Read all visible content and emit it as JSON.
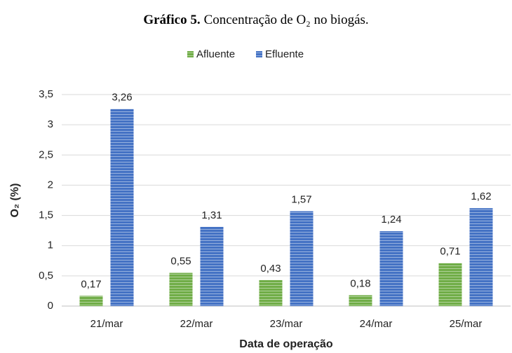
{
  "chart_data": {
    "type": "bar",
    "title_label": "Gráfico 5.",
    "title": "Concentração de O₂ no biogás.",
    "x_label": "Data de operação",
    "y_label": "O₂ (%)",
    "categories": [
      "21/mar",
      "22/mar",
      "23/mar",
      "24/mar",
      "25/mar"
    ],
    "series": [
      {
        "name": "Afluente",
        "color": "#70ad47",
        "values": [
          0.17,
          0.55,
          0.43,
          0.18,
          0.71
        ],
        "value_labels": [
          "0,17",
          "0,55",
          "0,43",
          "0,18",
          "0,71"
        ]
      },
      {
        "name": "Efluente",
        "color": "#4472c4",
        "values": [
          3.26,
          1.31,
          1.57,
          1.24,
          1.62
        ],
        "value_labels": [
          "3,26",
          "1,31",
          "1,57",
          "1,24",
          "1,62"
        ]
      }
    ],
    "ylim": [
      0,
      3.5
    ],
    "yticks": [
      0,
      {
        "value": 0.5,
        "label": "0,5"
      },
      1,
      {
        "value": 1.5,
        "label": "1,5"
      },
      2,
      {
        "value": 2.5,
        "label": "2,5"
      },
      3,
      {
        "value": 3.5,
        "label": "3,5"
      }
    ],
    "grid": true,
    "legend": "top"
  }
}
